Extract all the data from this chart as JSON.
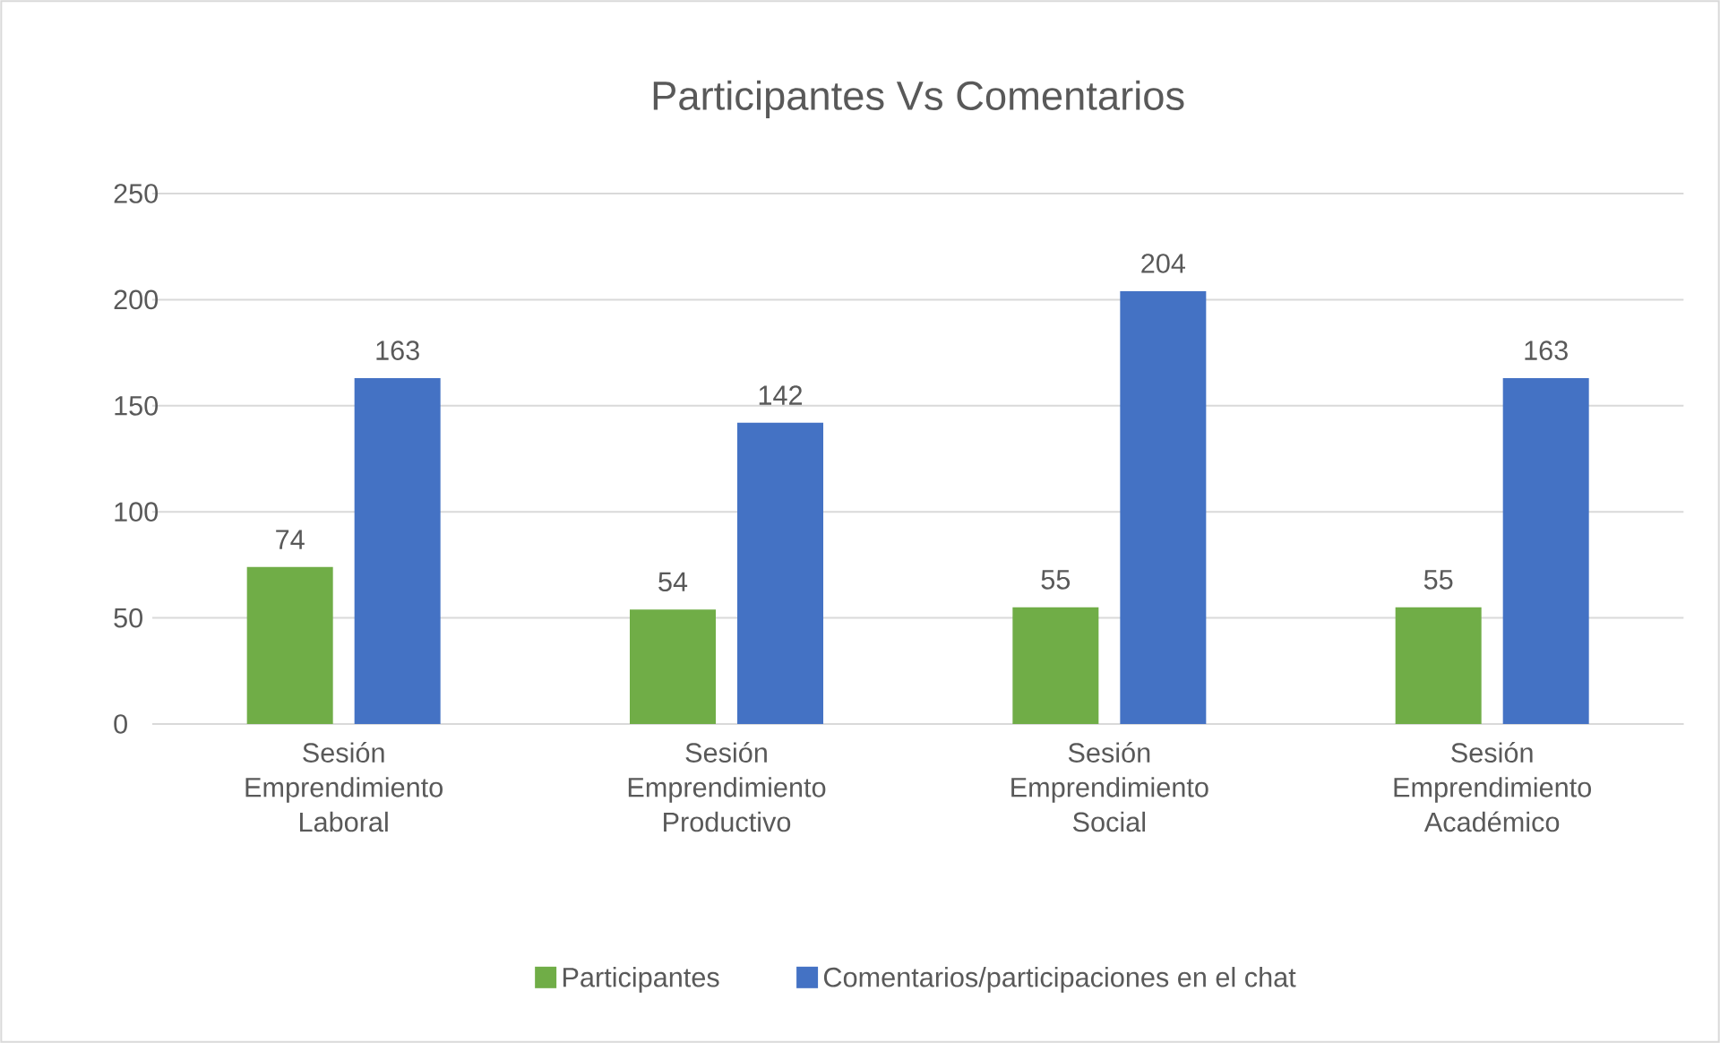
{
  "chart_data": {
    "type": "bar",
    "title": "Participantes Vs Comentarios",
    "categories": [
      "Sesión Emprendimiento Laboral",
      "Sesión Emprendimiento Productivo",
      "Sesión Emprendimiento Social",
      "Sesión Emprendimiento Académico"
    ],
    "series": [
      {
        "name": "Participantes",
        "color": "#70ad47",
        "values": [
          74,
          54,
          55,
          55
        ]
      },
      {
        "name": "Comentarios/participaciones en el chat",
        "color": "#4472c4",
        "values": [
          163,
          142,
          204,
          163
        ]
      }
    ],
    "ylim": [
      0,
      250
    ],
    "yticks": [
      0,
      50,
      100,
      150,
      200,
      250
    ],
    "grid": "y",
    "legend": "bottom",
    "data_labels": true
  }
}
